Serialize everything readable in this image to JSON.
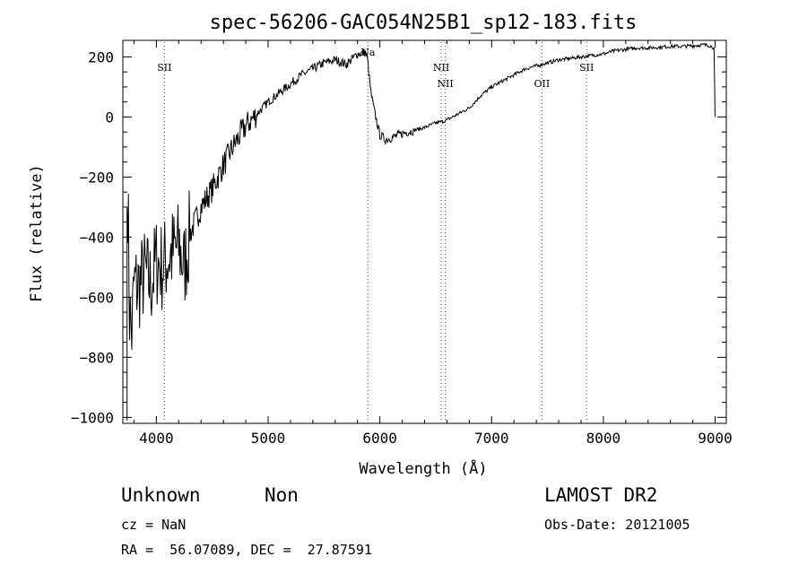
{
  "chart_data": {
    "type": "line",
    "title": "spec-56206-GAC054N25B1_sp12-183.fits",
    "xlabel": "Wavelength (Å)",
    "ylabel": "Flux (relative)",
    "xlim": [
      3700,
      9100
    ],
    "ylim": [
      -1020,
      255
    ],
    "xticks": [
      4000,
      5000,
      6000,
      7000,
      8000,
      9000
    ],
    "yticks": [
      -1000,
      -800,
      -600,
      -400,
      -200,
      0,
      200
    ],
    "grid": false,
    "series": [
      {
        "x": [
          3745,
          3760,
          3780,
          3800,
          3850,
          3900,
          3950,
          4000,
          4050,
          4100,
          4150,
          4200,
          4250,
          4300,
          4400,
          4500,
          4600,
          4700,
          4800,
          4900,
          5000,
          5100,
          5200,
          5300,
          5400,
          5500,
          5600,
          5700,
          5800,
          5870,
          5890,
          5900,
          5920,
          5950,
          6000,
          6050,
          6100,
          6200,
          6300,
          6400,
          6500,
          6563,
          6600,
          6700,
          6800,
          6900,
          7000,
          7100,
          7200,
          7300,
          7400,
          7500,
          7600,
          7700,
          7800,
          7900,
          8000,
          8100,
          8200,
          8300,
          8400,
          8500,
          8600,
          8700,
          8800,
          8900,
          8950,
          8990,
          9000
        ],
        "y": [
          -260,
          -650,
          -720,
          -560,
          -560,
          -520,
          -560,
          -480,
          -500,
          -470,
          -450,
          -430,
          -500,
          -390,
          -300,
          -240,
          -160,
          -90,
          -30,
          10,
          50,
          80,
          110,
          140,
          160,
          180,
          190,
          175,
          210,
          215,
          190,
          150,
          80,
          20,
          -60,
          -75,
          -70,
          -55,
          -45,
          -35,
          -20,
          -15,
          -10,
          10,
          30,
          70,
          100,
          120,
          140,
          160,
          170,
          180,
          190,
          195,
          200,
          205,
          210,
          220,
          225,
          230,
          230,
          232,
          235,
          235,
          237,
          240,
          238,
          230,
          0
        ]
      }
    ],
    "lines": [
      {
        "label": "SII",
        "x": 4072
      },
      {
        "label": "Na",
        "x": 5893
      },
      {
        "label": "NII",
        "x": 6549
      },
      {
        "label": "NII",
        "x": 6585
      },
      {
        "label": "OII",
        "x": 7450
      },
      {
        "label": "SII",
        "x": 7850
      }
    ]
  },
  "info": {
    "class": "Unknown",
    "subclass": "Non",
    "survey": "LAMOST DR2",
    "cz": "cz = NaN",
    "obs_date": "Obs-Date: 20121005",
    "coords": "RA =  56.07089, DEC =  27.87591"
  }
}
